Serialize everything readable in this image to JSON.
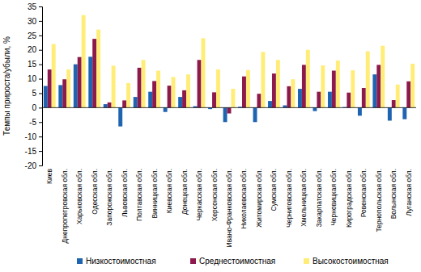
{
  "chart_data": {
    "type": "bar",
    "y_label": "Темпы прироста/убыли, %",
    "categories": [
      "Киев",
      "Днепропетровская обл.",
      "Харьковская обл.",
      "Одесская обл.",
      "Запорожская обл.",
      "Львовская обл.",
      "Полтавская обл.",
      "Винницкая обл.",
      "Киевская обл.",
      "Донецкая обл.",
      "Черкасская обл.",
      "Херсонская обл.",
      "Ивано-Франковская обл.",
      "Николаевская обл.",
      "Житомирская обл.",
      "Сумская обл.",
      "Черниговская обл.",
      "Хмельницкая обл.",
      "Закарпатская обл.",
      "Черновицкая обл.",
      "Кироградская обл.",
      "Ровенская обл.",
      "Тернопольская обл.",
      "Волынская обл.",
      "Луганская обл."
    ],
    "series": [
      {
        "name": "Низкостоимостная",
        "color": "#1f64b0",
        "values": [
          7.5,
          7.8,
          15,
          17.6,
          1.2,
          -6.5,
          3.7,
          5.5,
          -1.5,
          3.7,
          0.5,
          -0.5,
          -5,
          0.3,
          -5,
          2.3,
          0.8,
          6.5,
          -1.2,
          5.5,
          0.2,
          -2.8,
          11.5,
          -4.5,
          -4
        ]
      },
      {
        "name": "Среднестоимостная",
        "color": "#8c1a4c",
        "values": [
          13.2,
          9.8,
          17.5,
          23.8,
          1.8,
          2.5,
          13.8,
          9.2,
          7.6,
          6,
          16.5,
          5.3,
          -2,
          10.8,
          4.8,
          11.8,
          7.4,
          14.8,
          5.5,
          12.8,
          5.2,
          6.8,
          14.8,
          2.6,
          9.1
        ]
      },
      {
        "name": "Высокостоимостная",
        "color": "#ffed78",
        "values": [
          22,
          13.2,
          32,
          27,
          14.5,
          8.5,
          16.5,
          12.8,
          10.6,
          11.5,
          24,
          13.2,
          6.5,
          13,
          19.3,
          16.5,
          9.8,
          20,
          14.6,
          16.3,
          12.9,
          19.5,
          21.4,
          8,
          15.2
        ]
      }
    ],
    "ylim": [
      -20,
      35
    ],
    "yticks": [
      -20,
      -15,
      -10,
      -5,
      0,
      5,
      10,
      15,
      20,
      25,
      30,
      35
    ],
    "grid": false,
    "legend": "bottom"
  }
}
